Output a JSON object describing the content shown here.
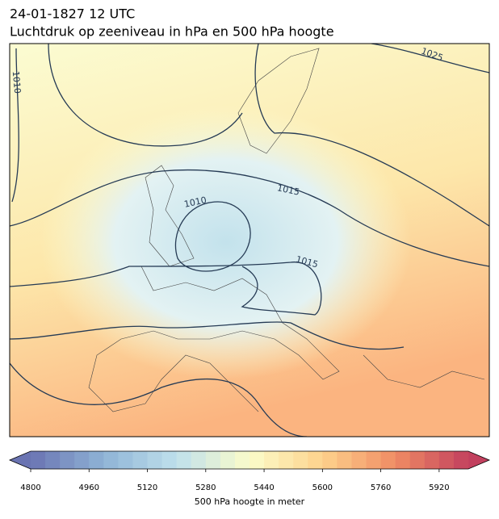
{
  "header": {
    "date": "24-01-1827 12 UTC",
    "subtitle": "Luchtdruk op zeeniveau in hPa en 500 hPa hoogte"
  },
  "contour_labels": [
    "1010",
    "1025",
    "1010",
    "1015",
    "1015"
  ],
  "colorbar": {
    "label": "500 hPa hoogte in meter",
    "lim": [
      4800,
      6000
    ],
    "step": 40,
    "ticks": [
      4800,
      4960,
      5120,
      5280,
      5440,
      5600,
      5760,
      5920
    ],
    "colors": [
      "#6a74b2",
      "#8fb3d6",
      "#bfe0ec",
      "#fbfcca",
      "#fdd28c",
      "#f08c64",
      "#c2405e"
    ]
  }
}
